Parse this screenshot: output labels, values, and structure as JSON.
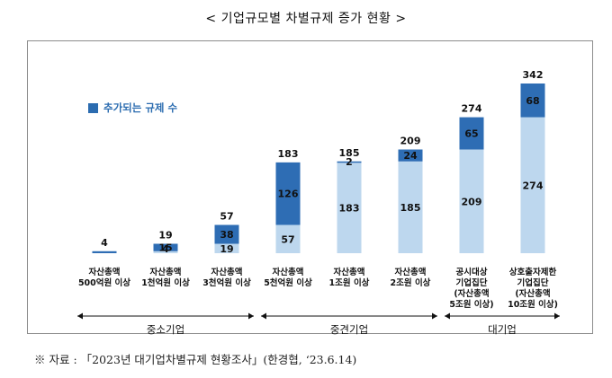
{
  "title": "< 기업규모별 차별규제 증가 현황 >",
  "source": "※ 자료 : 「2023년 대기업차별규제 현황조사」(한경협, ‘23.6.14)",
  "colors": {
    "dark": "#2e6db4",
    "light": "#bdd7ee"
  },
  "chart_data": {
    "type": "bar",
    "stacked": true,
    "legend": {
      "label": "추가되는 규제 수",
      "placement": "top-left"
    },
    "categories": [
      [
        "자산총액",
        "500억원 이상"
      ],
      [
        "자산총액",
        "1천억원 이상"
      ],
      [
        "자산총액",
        "3천억원 이상"
      ],
      [
        "자산총액",
        "5천억원 이상"
      ],
      [
        "자산총액",
        "1조원 이상"
      ],
      [
        "자산총액",
        "2조원 이상"
      ],
      [
        "공시대상",
        "기업집단",
        "(자산총액",
        "5조원 이상)"
      ],
      [
        "상호출자제한",
        "기업집단",
        "(자산총액",
        "10조원 이상)"
      ]
    ],
    "base": [
      0,
      4,
      19,
      57,
      183,
      185,
      209,
      274
    ],
    "added": [
      4,
      15,
      38,
      126,
      2,
      24,
      65,
      68
    ],
    "totals": [
      4,
      19,
      57,
      183,
      185,
      209,
      274,
      342
    ],
    "base_labels": [
      "",
      "4",
      "19",
      "57",
      "183",
      "185",
      "209",
      "274"
    ],
    "added_labels": [
      "",
      "15",
      "38",
      "126",
      "2",
      "24",
      "65",
      "68"
    ],
    "total_labels": [
      "4",
      "19",
      "57",
      "183",
      "185",
      "209",
      "274",
      "342"
    ],
    "ylim": [
      0,
      342
    ],
    "groups": [
      {
        "label": "중소기업",
        "from": 0,
        "to": 2
      },
      {
        "label": "중견기업",
        "from": 3,
        "to": 5
      },
      {
        "label": "대기업",
        "from": 6,
        "to": 7
      }
    ]
  }
}
